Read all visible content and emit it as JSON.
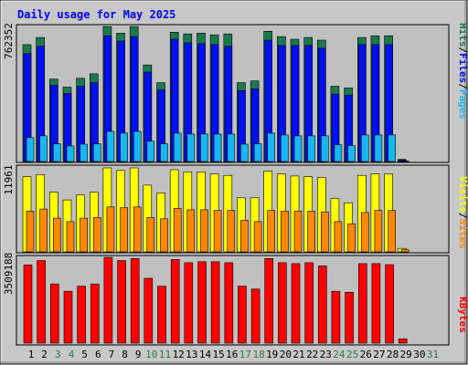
{
  "chart_data": {
    "type": "bar",
    "title": "Daily usage for May 2025",
    "categories": [
      "1",
      "2",
      "3",
      "4",
      "5",
      "6",
      "7",
      "8",
      "9",
      "10",
      "11",
      "12",
      "13",
      "14",
      "15",
      "16",
      "17",
      "18",
      "19",
      "20",
      "21",
      "22",
      "23",
      "24",
      "25",
      "26",
      "27",
      "28",
      "29",
      "30",
      "31"
    ],
    "weekend_days": [
      "3",
      "4",
      "10",
      "11",
      "17",
      "18",
      "24",
      "25",
      "31"
    ],
    "colors": {
      "title": "#0000ff",
      "hits": "#1a7a4e",
      "files": "#0010ee",
      "pages": "#18b6f0",
      "visits": "#ffff00",
      "sites": "#ff8800",
      "kbytes": "#ff0000",
      "weekday_label": "#000000",
      "weekend_label": "#2a7a50",
      "plot_background": "#c0c0c0",
      "frame_background": "#c8c8c8"
    },
    "panels": [
      {
        "id": "hits-files-pages",
        "max_label": "762352",
        "ymax": 762352,
        "legend": [
          {
            "text": "Hits",
            "color": "#1a7a4e"
          },
          {
            "text": "/",
            "color": "#000000"
          },
          {
            "text": "Files",
            "color": "#0010ee"
          },
          {
            "text": "/",
            "color": "#000000"
          },
          {
            "text": "Pages",
            "color": "#18b6f0"
          }
        ],
        "series": [
          {
            "name": "Hits",
            "color": "#1a7a4e",
            "values": [
              660000,
              700000,
              465000,
              420000,
              470000,
              495000,
              762000,
              725000,
              762000,
              545000,
              445000,
              730000,
              720000,
              725000,
              715000,
              720000,
              445000,
              455000,
              735000,
              705000,
              690000,
              700000,
              685000,
              425000,
              415000,
              700000,
              710000,
              710000,
              12000,
              0,
              0
            ]
          },
          {
            "name": "Files",
            "color": "#0010ee",
            "values": [
              610000,
              650000,
              430000,
              385000,
              425000,
              445000,
              710000,
              680000,
              705000,
              505000,
              405000,
              690000,
              670000,
              665000,
              660000,
              650000,
              400000,
              410000,
              685000,
              655000,
              655000,
              655000,
              640000,
              380000,
              375000,
              660000,
              660000,
              660000,
              9000,
              0,
              0
            ]
          },
          {
            "name": "Pages",
            "color": "#18b6f0",
            "values": [
              135000,
              145000,
              100000,
              88000,
              98000,
              100000,
              170000,
              160000,
              170000,
              115000,
              100000,
              160000,
              155000,
              155000,
              155000,
              155000,
              98000,
              100000,
              160000,
              150000,
              145000,
              145000,
              145000,
              95000,
              90000,
              150000,
              150000,
              150000,
              3000,
              0,
              0
            ]
          }
        ]
      },
      {
        "id": "visits-sites",
        "max_label": "11961",
        "ymax": 11961,
        "legend": [
          {
            "text": "Visits",
            "color": "#ffff00"
          },
          {
            "text": "/",
            "color": "#000000"
          },
          {
            "text": "Sites",
            "color": "#ff8800"
          }
        ],
        "series": [
          {
            "name": "Visits",
            "color": "#ffff00",
            "values": [
              10700,
              11000,
              8500,
              7400,
              8100,
              8500,
              11961,
              11600,
              11961,
              9500,
              8400,
              11700,
              11400,
              11400,
              11100,
              10900,
              7700,
              7700,
              11500,
              11100,
              10800,
              10700,
              10600,
              7600,
              7000,
              10900,
              11100,
              11100,
              500,
              0,
              0
            ]
          },
          {
            "name": "Sites",
            "color": "#ff8800",
            "values": [
              5800,
              6100,
              4800,
              4300,
              4800,
              4900,
              6400,
              6300,
              6400,
              4900,
              4700,
              6200,
              6000,
              6000,
              5900,
              5900,
              4500,
              4300,
              5900,
              5800,
              5800,
              5800,
              5700,
              4300,
              4000,
              5600,
              5900,
              5900,
              300,
              0,
              0
            ]
          }
        ]
      },
      {
        "id": "kbytes",
        "max_label": "3509188",
        "ymax": 3509188,
        "legend": [
          {
            "text": "KBytes",
            "color": "#ff0000"
          }
        ],
        "series": [
          {
            "name": "KBytes",
            "color": "#ff0000",
            "values": [
              3200000,
              3380000,
              2420000,
              2120000,
              2330000,
              2420000,
              3509188,
              3380000,
              3460000,
              2650000,
              2330000,
              3420000,
              3290000,
              3330000,
              3330000,
              3290000,
              2330000,
              2210000,
              3460000,
              3290000,
              3250000,
              3290000,
              3160000,
              2120000,
              2080000,
              3250000,
              3250000,
              3210000,
              170000,
              0,
              0
            ]
          }
        ]
      }
    ]
  }
}
